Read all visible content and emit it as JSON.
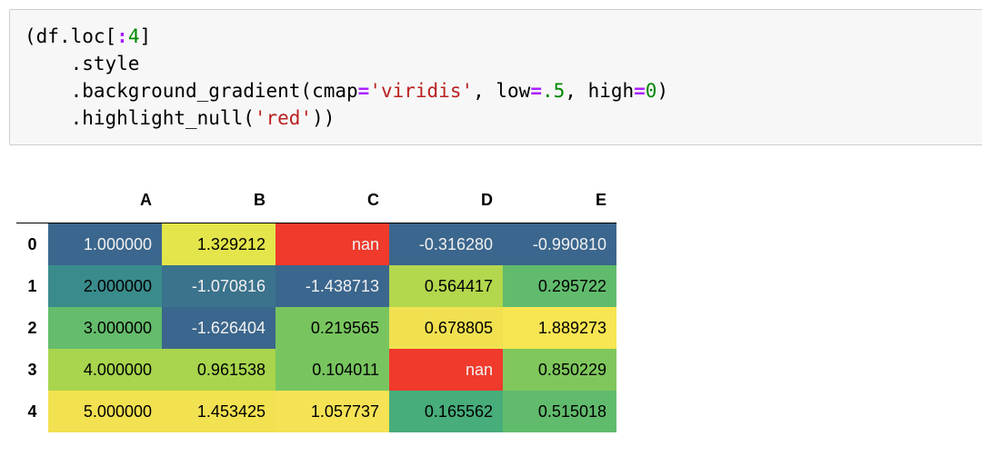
{
  "code_cell": {
    "lines": [
      [
        {
          "t": "(",
          "c": "tok-paren"
        },
        {
          "t": "df.loc[",
          "c": ""
        },
        {
          "t": ":",
          "c": "tok-op"
        },
        {
          "t": "4",
          "c": "tok-num"
        },
        {
          "t": "]",
          "c": ""
        }
      ],
      [
        {
          "t": "    .style",
          "c": ""
        }
      ],
      [
        {
          "t": "    .background_gradient(cmap",
          "c": ""
        },
        {
          "t": "=",
          "c": "tok-op"
        },
        {
          "t": "'viridis'",
          "c": "tok-str"
        },
        {
          "t": ", low",
          "c": ""
        },
        {
          "t": "=",
          "c": "tok-op"
        },
        {
          "t": ".5",
          "c": "tok-num"
        },
        {
          "t": ", high",
          "c": ""
        },
        {
          "t": "=",
          "c": "tok-op"
        },
        {
          "t": "0",
          "c": "tok-num"
        },
        {
          "t": ")",
          "c": ""
        }
      ],
      [
        {
          "t": "    .highlight_null(",
          "c": ""
        },
        {
          "t": "'red'",
          "c": "tok-str"
        },
        {
          "t": "))",
          "c": "tok-paren"
        }
      ]
    ]
  },
  "table": {
    "columns": [
      "A",
      "B",
      "C",
      "D",
      "E"
    ],
    "rows": [
      {
        "index": "0",
        "cells": [
          {
            "value": "1.000000",
            "bg": "#3b668d",
            "fg": "#f1f1f1"
          },
          {
            "value": "1.329212",
            "bg": "#e3e54a",
            "fg": "#000000"
          },
          {
            "value": "nan",
            "bg": "#ef3a2c",
            "fg": "#f1f1f1"
          },
          {
            "value": "-0.316280",
            "bg": "#3b668d",
            "fg": "#f1f1f1"
          },
          {
            "value": "-0.990810",
            "bg": "#3b668d",
            "fg": "#f1f1f1"
          }
        ]
      },
      {
        "index": "1",
        "cells": [
          {
            "value": "2.000000",
            "bg": "#3a8c8c",
            "fg": "#000000"
          },
          {
            "value": "-1.070816",
            "bg": "#3b728c",
            "fg": "#f1f1f1"
          },
          {
            "value": "-1.438713",
            "bg": "#3b668d",
            "fg": "#f1f1f1"
          },
          {
            "value": "0.564417",
            "bg": "#b3d74d",
            "fg": "#000000"
          },
          {
            "value": "0.295722",
            "bg": "#61bb6d",
            "fg": "#000000"
          }
        ]
      },
      {
        "index": "2",
        "cells": [
          {
            "value": "3.000000",
            "bg": "#64bc6c",
            "fg": "#000000"
          },
          {
            "value": "-1.626404",
            "bg": "#3b668d",
            "fg": "#f1f1f1"
          },
          {
            "value": "0.219565",
            "bg": "#78c55f",
            "fg": "#000000"
          },
          {
            "value": "0.678805",
            "bg": "#f1e150",
            "fg": "#000000"
          },
          {
            "value": "1.889273",
            "bg": "#f7e552",
            "fg": "#000000"
          }
        ]
      },
      {
        "index": "3",
        "cells": [
          {
            "value": "4.000000",
            "bg": "#a8d54d",
            "fg": "#000000"
          },
          {
            "value": "0.961538",
            "bg": "#a8d54d",
            "fg": "#000000"
          },
          {
            "value": "0.104011",
            "bg": "#78c55f",
            "fg": "#000000"
          },
          {
            "value": "nan",
            "bg": "#ef3a2c",
            "fg": "#f1f1f1"
          },
          {
            "value": "0.850229",
            "bg": "#7fc75c",
            "fg": "#000000"
          }
        ]
      },
      {
        "index": "4",
        "cells": [
          {
            "value": "5.000000",
            "bg": "#f2e150",
            "fg": "#000000"
          },
          {
            "value": "1.453425",
            "bg": "#f2e150",
            "fg": "#000000"
          },
          {
            "value": "1.057737",
            "bg": "#f5e355",
            "fg": "#000000"
          },
          {
            "value": "0.165562",
            "bg": "#47ad7a",
            "fg": "#000000"
          },
          {
            "value": "0.515018",
            "bg": "#61bb6d",
            "fg": "#000000"
          }
        ]
      }
    ]
  }
}
